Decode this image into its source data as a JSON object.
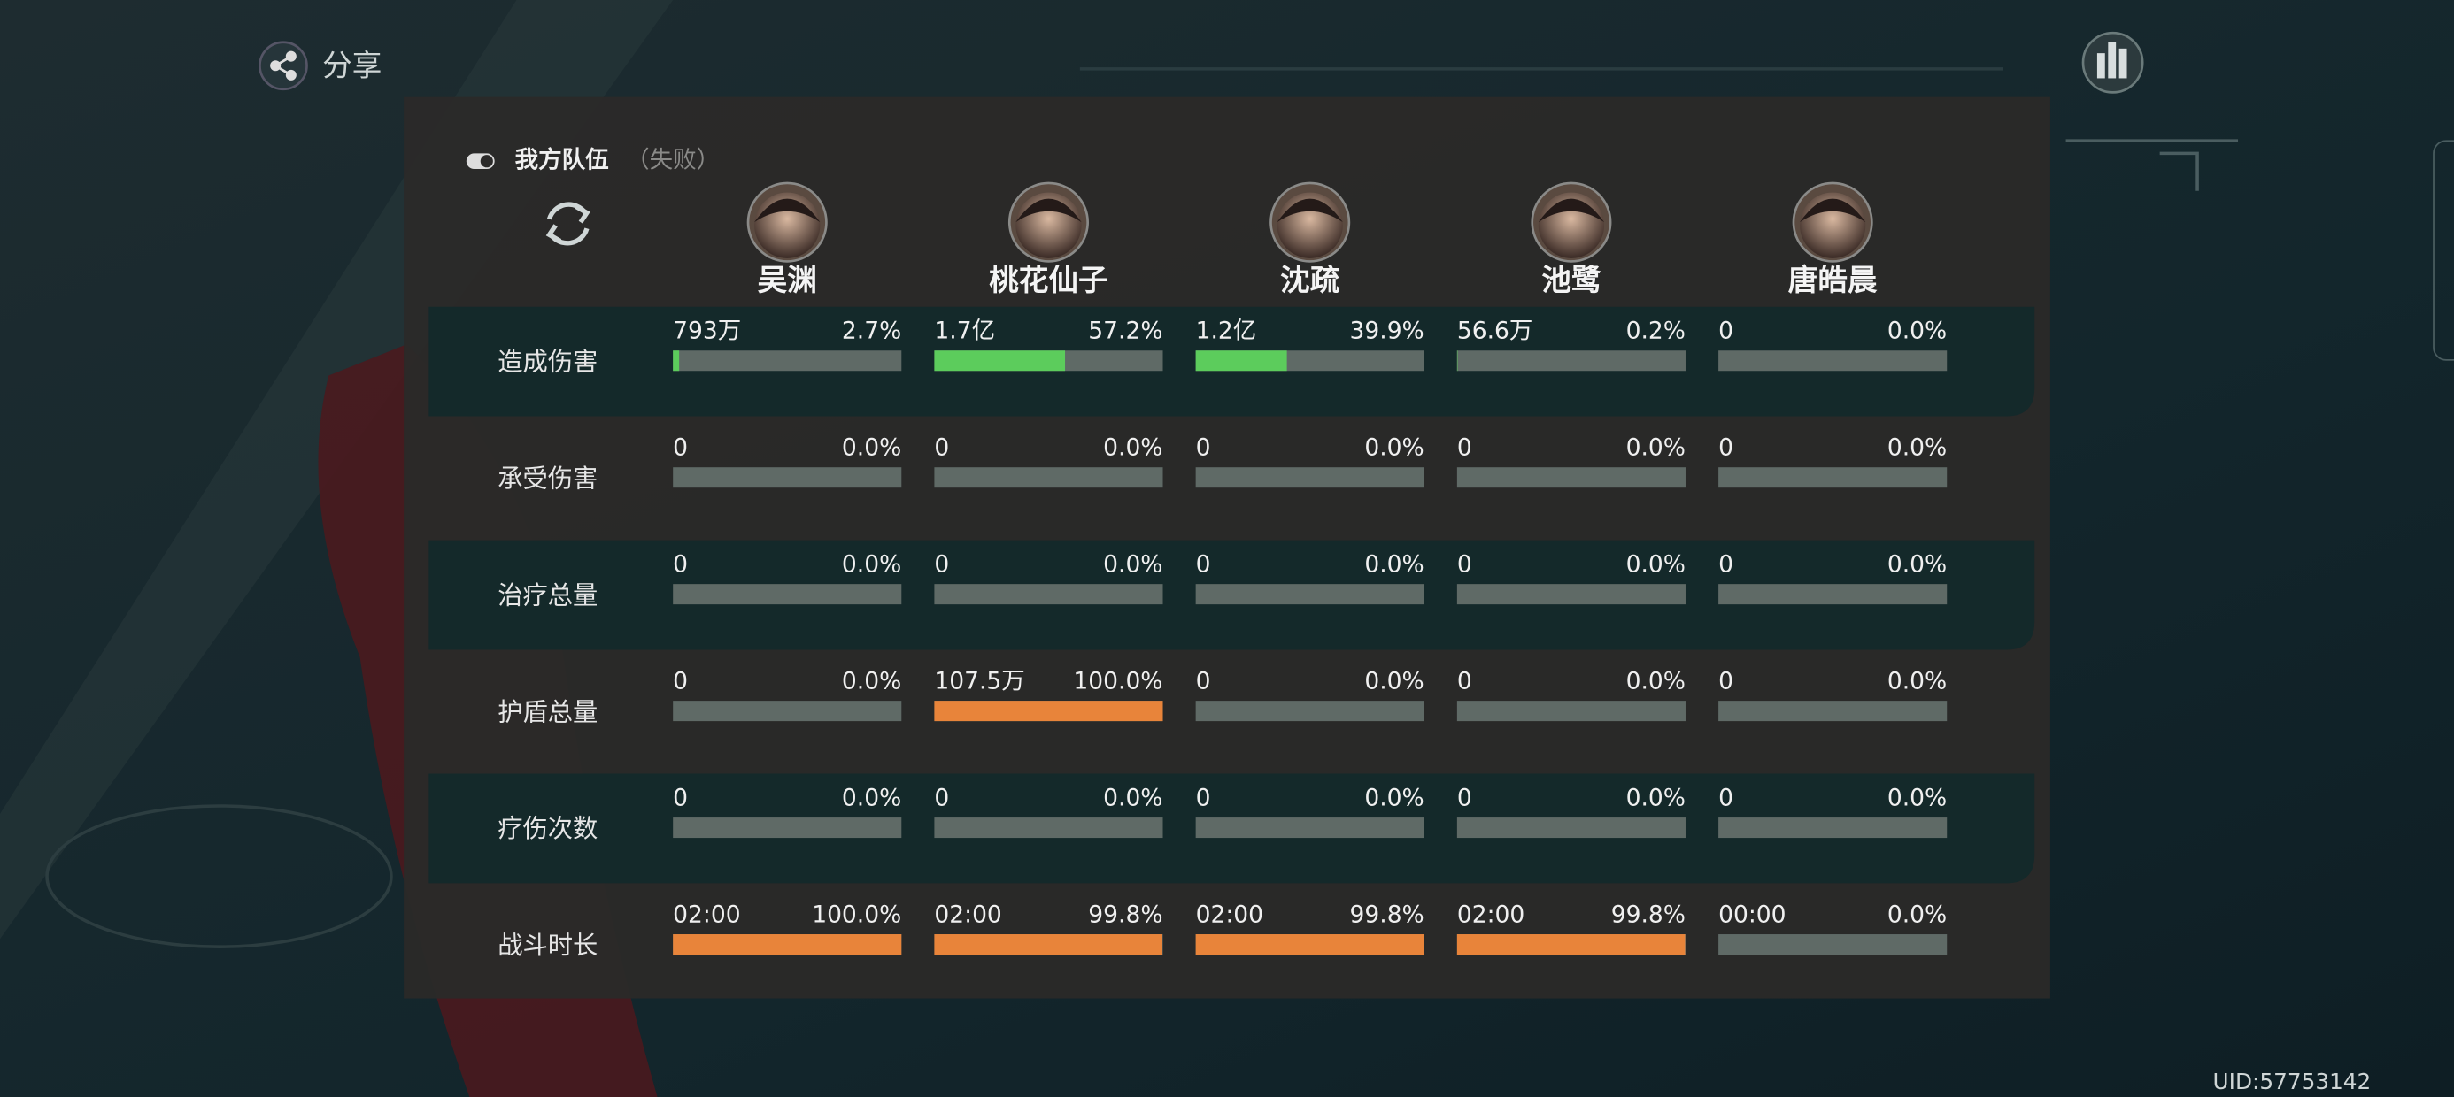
{
  "share": "分享",
  "team": {
    "title": "我方队伍",
    "status": "（失败）"
  },
  "characters": [
    "吴渊",
    "桃花仙子",
    "沈疏",
    "池鹭",
    "唐皓晨"
  ],
  "rows": [
    {
      "label": "造成伤害",
      "color": "#5ccc5c",
      "cells": [
        {
          "amount": "793万",
          "percent": {
            "value": 2.7,
            "label": "2.7%"
          }
        },
        {
          "amount": "1.7亿",
          "percent": {
            "value": 57.2,
            "label": "57.2%"
          }
        },
        {
          "amount": "1.2亿",
          "percent": {
            "value": 39.9,
            "label": "39.9%"
          }
        },
        {
          "amount": "56.6万",
          "percent": {
            "value": 0.2,
            "label": "0.2%"
          }
        },
        {
          "amount": "0",
          "percent": {
            "value": 0,
            "label": "0.0%"
          }
        }
      ]
    },
    {
      "label": "承受伤害",
      "color": "#e8843a",
      "cells": [
        {
          "amount": "0",
          "percent": {
            "value": 0,
            "label": "0.0%"
          }
        },
        {
          "amount": "0",
          "percent": {
            "value": 0,
            "label": "0.0%"
          }
        },
        {
          "amount": "0",
          "percent": {
            "value": 0,
            "label": "0.0%"
          }
        },
        {
          "amount": "0",
          "percent": {
            "value": 0,
            "label": "0.0%"
          }
        },
        {
          "amount": "0",
          "percent": {
            "value": 0,
            "label": "0.0%"
          }
        }
      ]
    },
    {
      "label": "治疗总量",
      "color": "#5ccc5c",
      "cells": [
        {
          "amount": "0",
          "percent": {
            "value": 0,
            "label": "0.0%"
          }
        },
        {
          "amount": "0",
          "percent": {
            "value": 0,
            "label": "0.0%"
          }
        },
        {
          "amount": "0",
          "percent": {
            "value": 0,
            "label": "0.0%"
          }
        },
        {
          "amount": "0",
          "percent": {
            "value": 0,
            "label": "0.0%"
          }
        },
        {
          "amount": "0",
          "percent": {
            "value": 0,
            "label": "0.0%"
          }
        }
      ]
    },
    {
      "label": "护盾总量",
      "color": "#e8843a",
      "cells": [
        {
          "amount": "0",
          "percent": {
            "value": 0,
            "label": "0.0%"
          }
        },
        {
          "amount": "107.5万",
          "percent": {
            "value": 100,
            "label": "100.0%"
          }
        },
        {
          "amount": "0",
          "percent": {
            "value": 0,
            "label": "0.0%"
          }
        },
        {
          "amount": "0",
          "percent": {
            "value": 0,
            "label": "0.0%"
          }
        },
        {
          "amount": "0",
          "percent": {
            "value": 0,
            "label": "0.0%"
          }
        }
      ]
    },
    {
      "label": "疗伤次数",
      "color": "#e8843a",
      "cells": [
        {
          "amount": "0",
          "percent": {
            "value": 0,
            "label": "0.0%"
          }
        },
        {
          "amount": "0",
          "percent": {
            "value": 0,
            "label": "0.0%"
          }
        },
        {
          "amount": "0",
          "percent": {
            "value": 0,
            "label": "0.0%"
          }
        },
        {
          "amount": "0",
          "percent": {
            "value": 0,
            "label": "0.0%"
          }
        },
        {
          "amount": "0",
          "percent": {
            "value": 0,
            "label": "0.0%"
          }
        }
      ]
    },
    {
      "label": "战斗时长",
      "color": "#e8843a",
      "cells": [
        {
          "amount": "02:00",
          "percent": {
            "value": 100,
            "label": "100.0%"
          }
        },
        {
          "amount": "02:00",
          "percent": {
            "value": 99.8,
            "label": "99.8%"
          }
        },
        {
          "amount": "02:00",
          "percent": {
            "value": 99.8,
            "label": "99.8%"
          }
        },
        {
          "amount": "02:00",
          "percent": {
            "value": 99.8,
            "label": "99.8%"
          }
        },
        {
          "amount": "00:00",
          "percent": {
            "value": 0,
            "label": "0.0%"
          }
        }
      ]
    }
  ],
  "uid": "UID:57753142"
}
